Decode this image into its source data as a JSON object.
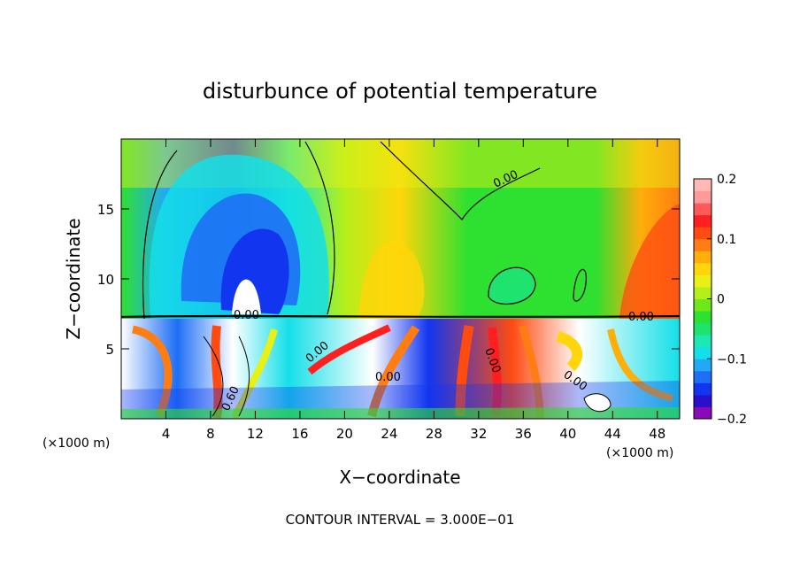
{
  "chart_data": {
    "type": "heatmap",
    "title": "disturbunce of potential temperature",
    "xlabel": "X−coordinate",
    "ylabel": "Z−coordinate",
    "x_unit_left": "(×1000 m)",
    "x_unit_right": "(×1000 m)",
    "footer": "CONTOUR INTERVAL = 3.000E−01",
    "xlim": [
      0,
      50
    ],
    "ylim": [
      0,
      20
    ],
    "x_ticks": [
      4,
      8,
      12,
      16,
      20,
      24,
      28,
      32,
      36,
      40,
      44,
      48
    ],
    "x_tick_labels": [
      "4",
      "8",
      "12",
      "16",
      "20",
      "24",
      "28",
      "32",
      "36",
      "40",
      "44",
      "48"
    ],
    "y_ticks": [
      5,
      10,
      15
    ],
    "y_tick_labels": [
      "5",
      "10",
      "15"
    ],
    "colorbar": {
      "range": [
        -0.2,
        0.2
      ],
      "tick_labels": [
        "0.2",
        "0.1",
        "0",
        "−0.1",
        "−0.2"
      ],
      "tick_values": [
        0.2,
        0.1,
        0,
        -0.1,
        -0.2
      ],
      "colors": [
        "#8a0ab5",
        "#2b0fcf",
        "#1236f0",
        "#1e6ff5",
        "#22a8f7",
        "#14dfe8",
        "#1de8b5",
        "#1ee36e",
        "#2ee02f",
        "#6fe81a",
        "#b5ef1a",
        "#e8f015",
        "#ffd60a",
        "#ffae0a",
        "#ff7d12",
        "#ff4a12",
        "#ff1f1f",
        "#ff5a5a",
        "#ff9a9a",
        "#ffb8b8"
      ]
    },
    "contour_labels": [
      "0.00",
      "0.00",
      "0.00",
      "0.00",
      "0.00",
      "0.00",
      "0.00",
      "0.60"
    ]
  }
}
